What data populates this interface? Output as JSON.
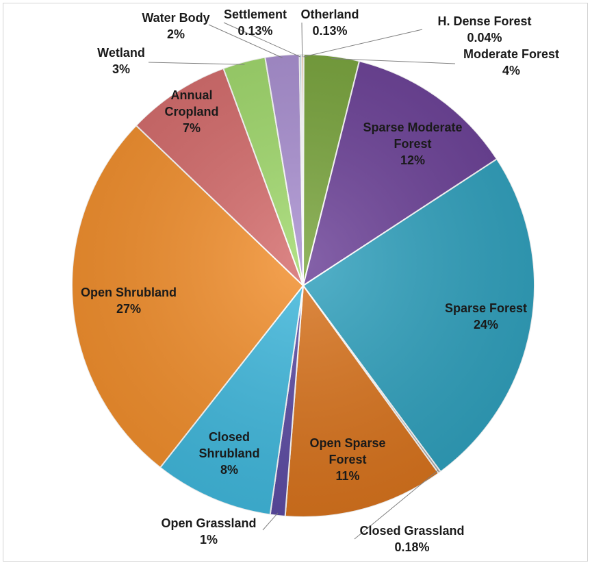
{
  "chart_data": {
    "type": "pie",
    "title": "",
    "slices": [
      {
        "label": "H. Dense Forest",
        "pct_label": "0.04%",
        "value": 0.04,
        "color": "#8c8c8c"
      },
      {
        "label": "Moderate Forest",
        "pct_label": "4%",
        "value": 3.9,
        "color": "#77a33a"
      },
      {
        "label": "Sparse Moderate Forest",
        "pct_label": "12%",
        "value": 12.0,
        "color": "#6a3f96"
      },
      {
        "label": "Sparse Forest",
        "pct_label": "24%",
        "value": 24.3,
        "color": "#2ea0bd"
      },
      {
        "label": "Closed Grassland",
        "pct_label": "0.18%",
        "value": 0.18,
        "color": "#a6a6a6"
      },
      {
        "label": "Open Sparse Forest",
        "pct_label": "11%",
        "value": 11.3,
        "color": "#d9731c"
      },
      {
        "label": "Open Grassland",
        "pct_label": "1%",
        "value": 1.05,
        "color": "#5b4aa3"
      },
      {
        "label": "Closed Shrubland",
        "pct_label": "8%",
        "value": 8.4,
        "color": "#3fb8dd"
      },
      {
        "label": "Open Shrubland",
        "pct_label": "27%",
        "value": 26.8,
        "color": "#f28e2b"
      },
      {
        "label": "Annual Cropland",
        "pct_label": "7%",
        "value": 7.3,
        "color": "#d46a6a"
      },
      {
        "label": "Wetland",
        "pct_label": "3%",
        "value": 3.0,
        "color": "#9fd86a"
      },
      {
        "label": "Water Body",
        "pct_label": "2%",
        "value": 2.4,
        "color": "#a88ed0"
      },
      {
        "label": "Settlement",
        "pct_label": "0.13%",
        "value": 0.13,
        "color": "#5fa8c8"
      },
      {
        "label": "Otherland",
        "pct_label": "0.13%",
        "value": 0.13,
        "color": "#e89a4a"
      }
    ]
  }
}
